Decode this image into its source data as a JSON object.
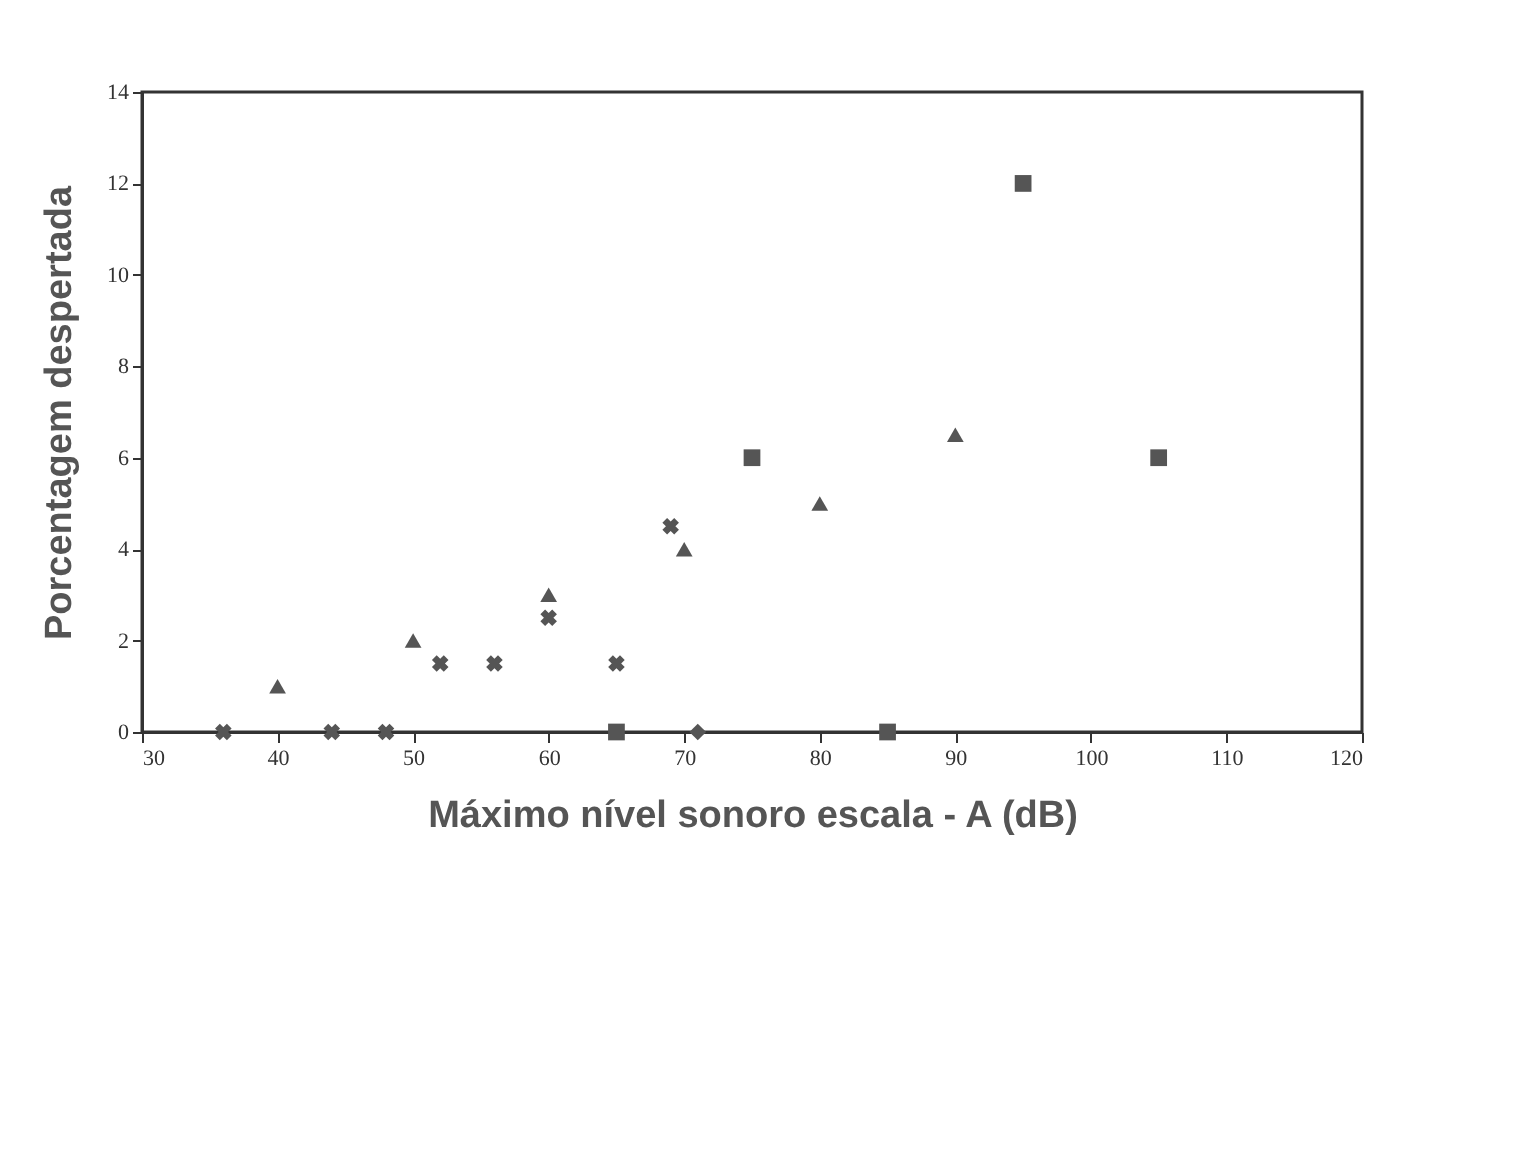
{
  "chart_data": {
    "type": "scatter",
    "xlabel": "Máximo nível sonoro escala - A (dB)",
    "ylabel": "Porcentagem despertada",
    "xlim": [
      30,
      120
    ],
    "xticks": [
      30,
      40,
      50,
      60,
      70,
      80,
      90,
      100,
      110,
      120
    ],
    "ylim": [
      0,
      14
    ],
    "yticks": [
      0,
      2,
      4,
      6,
      8,
      10,
      12,
      14
    ],
    "grid": false,
    "series": [
      {
        "marker": "triangle",
        "color": "#555555",
        "x": [
          40,
          50,
          60,
          70,
          80,
          90
        ],
        "values": [
          1,
          2,
          3,
          4,
          5,
          6.5
        ]
      },
      {
        "marker": "cross",
        "color": "#555555",
        "x": [
          36,
          44,
          48,
          52,
          56,
          60,
          65,
          69
        ],
        "values": [
          0,
          0,
          0,
          1.5,
          1.5,
          2.5,
          1.5,
          4.5
        ]
      },
      {
        "marker": "square",
        "color": "#555555",
        "x": [
          65,
          75,
          85,
          95,
          105
        ],
        "values": [
          0,
          6,
          0,
          12,
          6
        ]
      },
      {
        "marker": "diamond",
        "color": "#555555",
        "x": [
          71
        ],
        "values": [
          0
        ]
      }
    ]
  }
}
